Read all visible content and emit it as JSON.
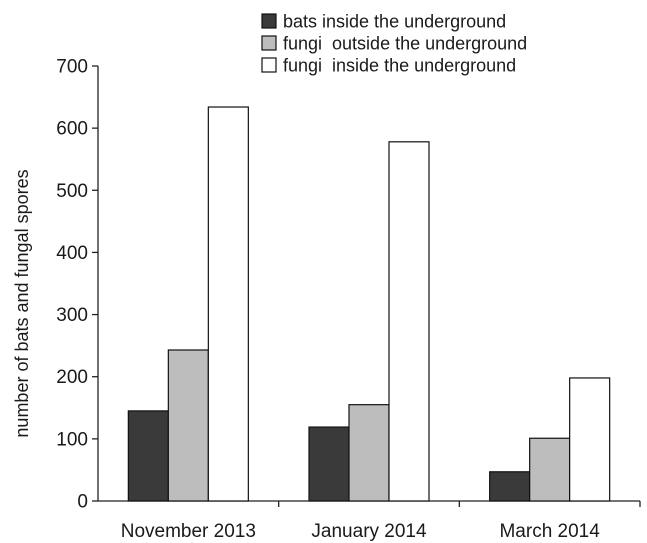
{
  "chart_data": {
    "type": "bar",
    "title": "",
    "xlabel": "",
    "ylabel": "number of bats and fungal spores",
    "ylim": [
      0,
      700
    ],
    "yticks": [
      0,
      100,
      200,
      300,
      400,
      500,
      600,
      700
    ],
    "categories": [
      "November 2013",
      "January 2014",
      "March 2014"
    ],
    "series": [
      {
        "name": "bats inside the underground",
        "values": [
          145,
          119,
          47
        ],
        "color": "#3a3a3a"
      },
      {
        "name": "fungi  outside the underground",
        "values": [
          243,
          155,
          101
        ],
        "color": "#bdbdbd"
      },
      {
        "name": "fungi  inside the underground",
        "values": [
          634,
          578,
          198
        ],
        "color": "#ffffff"
      }
    ],
    "legend_position": "top",
    "grid": false
  }
}
